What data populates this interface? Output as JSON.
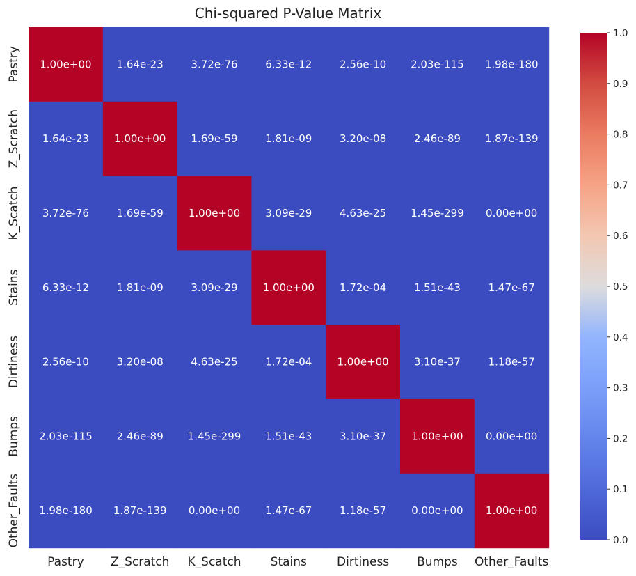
{
  "chart_data": {
    "type": "heatmap",
    "title": "Chi-squared P-Value Matrix",
    "xlabel": "",
    "ylabel": "",
    "categories": [
      "Pastry",
      "Z_Scratch",
      "K_Scatch",
      "Stains",
      "Dirtiness",
      "Bumps",
      "Other_Faults"
    ],
    "labels": [
      [
        "1.00e+00",
        "1.64e-23",
        "3.72e-76",
        "6.33e-12",
        "2.56e-10",
        "2.03e-115",
        "1.98e-180"
      ],
      [
        "1.64e-23",
        "1.00e+00",
        "1.69e-59",
        "1.81e-09",
        "3.20e-08",
        "2.46e-89",
        "1.87e-139"
      ],
      [
        "3.72e-76",
        "1.69e-59",
        "1.00e+00",
        "3.09e-29",
        "4.63e-25",
        "1.45e-299",
        "0.00e+00"
      ],
      [
        "6.33e-12",
        "1.81e-09",
        "3.09e-29",
        "1.00e+00",
        "1.72e-04",
        "1.51e-43",
        "1.47e-67"
      ],
      [
        "2.56e-10",
        "3.20e-08",
        "4.63e-25",
        "1.72e-04",
        "1.00e+00",
        "3.10e-37",
        "1.18e-57"
      ],
      [
        "2.03e-115",
        "2.46e-89",
        "1.45e-299",
        "1.51e-43",
        "3.10e-37",
        "1.00e+00",
        "0.00e+00"
      ],
      [
        "1.98e-180",
        "1.87e-139",
        "0.00e+00",
        "1.47e-67",
        "1.18e-57",
        "0.00e+00",
        "1.00e+00"
      ]
    ],
    "values": [
      [
        1.0,
        1.64e-23,
        3.72e-76,
        6.33e-12,
        2.56e-10,
        2.03e-115,
        1.98e-180
      ],
      [
        1.64e-23,
        1.0,
        1.69e-59,
        1.81e-09,
        3.2e-08,
        2.46e-89,
        1.87e-139
      ],
      [
        3.72e-76,
        1.69e-59,
        1.0,
        3.09e-29,
        4.63e-25,
        1.45e-299,
        0.0
      ],
      [
        6.33e-12,
        1.81e-09,
        3.09e-29,
        1.0,
        0.000172,
        1.51e-43,
        1.47e-67
      ],
      [
        2.56e-10,
        3.2e-08,
        4.63e-25,
        0.000172,
        1.0,
        3.1e-37,
        1.18e-57
      ],
      [
        2.03e-115,
        2.46e-89,
        1.45e-299,
        1.51e-43,
        3.1e-37,
        1.0,
        0.0
      ],
      [
        1.98e-180,
        1.87e-139,
        0.0,
        1.47e-67,
        1.18e-57,
        0.0,
        1.0
      ]
    ],
    "colormap": "coolwarm",
    "colorbar": {
      "range": [
        0.0,
        1.0
      ],
      "ticks": [
        "0.0",
        "0.1",
        "0.2",
        "0.3",
        "0.4",
        "0.5",
        "0.6",
        "0.7",
        "0.8",
        "0.9",
        "1.0"
      ],
      "placement": "right"
    },
    "grid": false,
    "colors": {
      "low": "#3b4cc0",
      "mid": "#dddcdc",
      "high": "#b40426",
      "text_on_dark": "#ffffff"
    }
  }
}
